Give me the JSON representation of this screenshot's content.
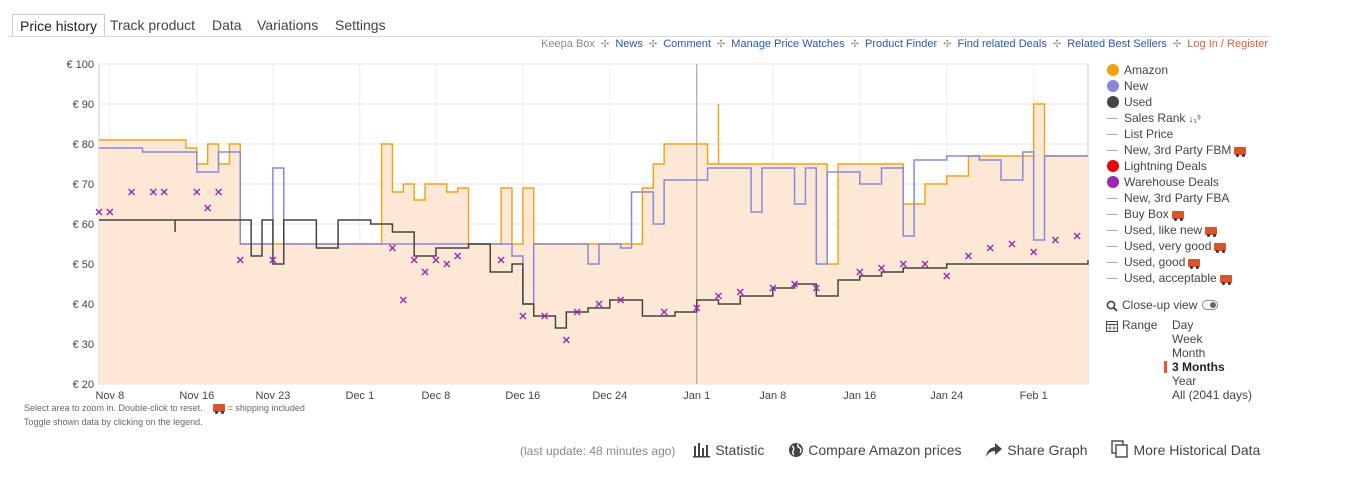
{
  "tabs": [
    "Price history",
    "Track product",
    "Data",
    "Variations",
    "Settings"
  ],
  "links": {
    "keepa_box": "Keepa Box",
    "items": [
      "News",
      "Comment",
      "Manage Price Watches",
      "Product Finder",
      "Find related Deals",
      "Related Best Sellers"
    ],
    "login": "Log In / Register"
  },
  "legend": {
    "items": [
      {
        "label": "Amazon",
        "kind": "dot",
        "color": "#f5a00f"
      },
      {
        "label": "New",
        "kind": "dot",
        "color": "#8888dd"
      },
      {
        "label": "Used",
        "kind": "dot",
        "color": "#444444"
      },
      {
        "label": "Sales Rank",
        "kind": "line",
        "icon": "sort-icon"
      },
      {
        "label": "List Price",
        "kind": "line"
      },
      {
        "label": "New, 3rd Party FBM",
        "kind": "line",
        "icon": "truck-icon"
      },
      {
        "label": "Lightning Deals",
        "kind": "dot",
        "color": "#ee0000"
      },
      {
        "label": "Warehouse Deals",
        "kind": "dot",
        "color": "#9c27b0"
      },
      {
        "label": "New, 3rd Party FBA",
        "kind": "line"
      },
      {
        "label": "Buy Box",
        "kind": "line",
        "icon": "truck-icon"
      },
      {
        "label": "Used, like new",
        "kind": "line",
        "icon": "truck-icon"
      },
      {
        "label": "Used, very good",
        "kind": "line",
        "icon": "truck-icon"
      },
      {
        "label": "Used, good",
        "kind": "line",
        "icon": "truck-icon"
      },
      {
        "label": "Used, acceptable",
        "kind": "line",
        "icon": "truck-icon"
      }
    ]
  },
  "closeup": {
    "label": "Close-up view"
  },
  "range": {
    "label": "Range",
    "options": [
      "Day",
      "Week",
      "Month",
      "3 Months",
      "Year",
      "All (2041 days)"
    ],
    "selected": "3 Months"
  },
  "hints": {
    "zoom": "Select area to zoom in. Double-click to reset.",
    "shipping": "= shipping included",
    "toggle": "Toggle shown data by clicking on the legend."
  },
  "bottom": {
    "last_update": "(last update: 48 minutes ago)",
    "statistic": "Statistic",
    "compare": "Compare Amazon prices",
    "share": "Share Graph",
    "more": "More Historical Data"
  },
  "chart_data": {
    "type": "line",
    "title": "",
    "xlabel": "",
    "ylabel": "",
    "ylim": [
      20,
      100
    ],
    "y_ticks": [
      "€ 100",
      "€ 90",
      "€ 80",
      "€ 70",
      "€ 60",
      "€ 50",
      "€ 40",
      "€ 30",
      "€ 20"
    ],
    "x_range": [
      "2023-11-07",
      "2024-02-06"
    ],
    "x_ticks": [
      {
        "label": "Nov 8",
        "date": "2023-11-08"
      },
      {
        "label": "Nov 16",
        "date": "2023-11-16"
      },
      {
        "label": "Nov 23",
        "date": "2023-11-23"
      },
      {
        "label": "Dec 1",
        "date": "2023-12-01"
      },
      {
        "label": "Dec 8",
        "date": "2023-12-08"
      },
      {
        "label": "Dec 16",
        "date": "2023-12-16"
      },
      {
        "label": "Dec 24",
        "date": "2023-12-24"
      },
      {
        "label": "Jan 1",
        "date": "2024-01-01"
      },
      {
        "label": "Jan 8",
        "date": "2024-01-08"
      },
      {
        "label": "Jan 16",
        "date": "2024-01-16"
      },
      {
        "label": "Jan 24",
        "date": "2024-01-24"
      },
      {
        "label": "Feb 1",
        "date": "2024-02-01"
      }
    ],
    "grid": true,
    "legend_position": "right",
    "series": [
      {
        "name": "Amazon",
        "color": "#f5a00f",
        "style": "step-area",
        "points": [
          [
            "2023-11-07",
            81
          ],
          [
            "2023-11-14",
            81
          ],
          [
            "2023-11-15",
            79
          ],
          [
            "2023-11-16",
            75
          ],
          [
            "2023-11-17",
            80
          ],
          [
            "2023-11-18",
            75
          ],
          [
            "2023-11-19",
            80
          ],
          [
            "2023-11-20",
            55
          ],
          [
            "2023-12-03",
            55
          ],
          [
            "2023-12-03",
            80
          ],
          [
            "2023-12-04",
            68
          ],
          [
            "2023-12-05",
            70
          ],
          [
            "2023-12-06",
            66
          ],
          [
            "2023-12-07",
            70
          ],
          [
            "2023-12-09",
            68
          ],
          [
            "2023-12-10",
            69
          ],
          [
            "2023-12-11",
            55
          ],
          [
            "2023-12-14",
            55
          ],
          [
            "2023-12-14",
            69
          ],
          [
            "2023-12-15",
            55
          ],
          [
            "2023-12-16",
            69
          ],
          [
            "2023-12-17",
            55
          ],
          [
            "2023-12-26",
            55
          ],
          [
            "2023-12-27",
            69
          ],
          [
            "2023-12-28",
            75
          ],
          [
            "2023-12-29",
            80
          ],
          [
            "2024-01-01",
            80
          ],
          [
            "2024-01-02",
            75
          ],
          [
            "2024-01-03",
            90
          ],
          [
            "2024-01-03",
            75
          ],
          [
            "2024-01-12",
            75
          ],
          [
            "2024-01-13",
            50
          ],
          [
            "2024-01-14",
            75
          ],
          [
            "2024-01-20",
            75
          ],
          [
            "2024-01-20",
            65
          ],
          [
            "2024-01-22",
            70
          ],
          [
            "2024-01-24",
            72
          ],
          [
            "2024-01-26",
            77
          ],
          [
            "2024-02-01",
            77
          ],
          [
            "2024-02-01",
            90
          ],
          [
            "2024-02-02",
            77
          ],
          [
            "2024-02-06",
            77
          ]
        ]
      },
      {
        "name": "New",
        "color": "#8888dd",
        "style": "step",
        "points": [
          [
            "2023-11-07",
            79
          ],
          [
            "2023-11-10",
            79
          ],
          [
            "2023-11-11",
            78
          ],
          [
            "2023-11-15",
            78
          ],
          [
            "2023-11-16",
            73
          ],
          [
            "2023-11-18",
            78
          ],
          [
            "2023-11-20",
            55
          ],
          [
            "2023-11-22",
            55
          ],
          [
            "2023-11-23",
            74
          ],
          [
            "2023-11-24",
            55
          ],
          [
            "2023-12-10",
            55
          ],
          [
            "2023-12-14",
            55
          ],
          [
            "2023-12-15",
            52
          ],
          [
            "2023-12-16",
            40
          ],
          [
            "2023-12-17",
            55
          ],
          [
            "2023-12-22",
            55
          ],
          [
            "2023-12-22",
            50
          ],
          [
            "2023-12-23",
            55
          ],
          [
            "2023-12-25",
            54
          ],
          [
            "2023-12-26",
            68
          ],
          [
            "2023-12-28",
            60
          ],
          [
            "2023-12-29",
            71
          ],
          [
            "2024-01-01",
            71
          ],
          [
            "2024-01-02",
            74
          ],
          [
            "2024-01-05",
            74
          ],
          [
            "2024-01-06",
            63
          ],
          [
            "2024-01-07",
            74
          ],
          [
            "2024-01-10",
            65
          ],
          [
            "2024-01-11",
            74
          ],
          [
            "2024-01-12",
            50
          ],
          [
            "2024-01-13",
            73
          ],
          [
            "2024-01-16",
            70
          ],
          [
            "2024-01-18",
            74
          ],
          [
            "2024-01-20",
            57
          ],
          [
            "2024-01-21",
            76
          ],
          [
            "2024-01-24",
            77
          ],
          [
            "2024-01-27",
            76
          ],
          [
            "2024-01-29",
            71
          ],
          [
            "2024-01-31",
            78
          ],
          [
            "2024-02-01",
            56
          ],
          [
            "2024-02-02",
            77
          ],
          [
            "2024-02-06",
            77
          ]
        ]
      },
      {
        "name": "Used",
        "color": "#444444",
        "style": "step",
        "points": [
          [
            "2023-11-07",
            61
          ],
          [
            "2023-11-14",
            61
          ],
          [
            "2023-11-14",
            58
          ],
          [
            "2023-11-14",
            61
          ],
          [
            "2023-11-20",
            61
          ],
          [
            "2023-11-21",
            52
          ],
          [
            "2023-11-22",
            61
          ],
          [
            "2023-11-23",
            50
          ],
          [
            "2023-11-24",
            61
          ],
          [
            "2023-11-26",
            61
          ],
          [
            "2023-11-27",
            54
          ],
          [
            "2023-11-29",
            61
          ],
          [
            "2023-12-02",
            60
          ],
          [
            "2023-12-04",
            58
          ],
          [
            "2023-12-06",
            52
          ],
          [
            "2023-12-08",
            54
          ],
          [
            "2023-12-11",
            55
          ],
          [
            "2023-12-13",
            48
          ],
          [
            "2023-12-15",
            50
          ],
          [
            "2023-12-16",
            40
          ],
          [
            "2023-12-17",
            37
          ],
          [
            "2023-12-19",
            34
          ],
          [
            "2023-12-20",
            38
          ],
          [
            "2023-12-22",
            39
          ],
          [
            "2023-12-24",
            41
          ],
          [
            "2023-12-27",
            37
          ],
          [
            "2023-12-30",
            38
          ],
          [
            "2024-01-01",
            41
          ],
          [
            "2024-01-03",
            40
          ],
          [
            "2024-01-05",
            42
          ],
          [
            "2024-01-08",
            44
          ],
          [
            "2024-01-10",
            45
          ],
          [
            "2024-01-12",
            42
          ],
          [
            "2024-01-14",
            46
          ],
          [
            "2024-01-16",
            47
          ],
          [
            "2024-01-18",
            48
          ],
          [
            "2024-01-20",
            49
          ],
          [
            "2024-01-24",
            50
          ],
          [
            "2024-01-28",
            50
          ],
          [
            "2024-02-01",
            50
          ],
          [
            "2024-02-04",
            50
          ],
          [
            "2024-02-06",
            51
          ]
        ]
      },
      {
        "name": "Warehouse Deals",
        "color": "#9c27b0",
        "style": "markers",
        "points": [
          [
            "2023-11-07",
            63
          ],
          [
            "2023-11-08",
            63
          ],
          [
            "2023-11-10",
            68
          ],
          [
            "2023-11-12",
            68
          ],
          [
            "2023-11-13",
            68
          ],
          [
            "2023-11-16",
            68
          ],
          [
            "2023-11-17",
            64
          ],
          [
            "2023-11-18",
            68
          ],
          [
            "2023-11-20",
            51
          ],
          [
            "2023-11-23",
            51
          ],
          [
            "2023-12-04",
            54
          ],
          [
            "2023-12-05",
            41
          ],
          [
            "2023-12-06",
            51
          ],
          [
            "2023-12-07",
            48
          ],
          [
            "2023-12-08",
            51
          ],
          [
            "2023-12-09",
            50
          ],
          [
            "2023-12-10",
            52
          ],
          [
            "2023-12-14",
            51
          ],
          [
            "2023-12-16",
            37
          ],
          [
            "2023-12-18",
            37
          ],
          [
            "2023-12-20",
            31
          ],
          [
            "2023-12-21",
            38
          ],
          [
            "2023-12-23",
            40
          ],
          [
            "2023-12-25",
            41
          ],
          [
            "2023-12-29",
            38
          ],
          [
            "2024-01-01",
            39
          ],
          [
            "2024-01-03",
            42
          ],
          [
            "2024-01-05",
            43
          ],
          [
            "2024-01-08",
            44
          ],
          [
            "2024-01-10",
            45
          ],
          [
            "2024-01-12",
            44
          ],
          [
            "2024-01-16",
            48
          ],
          [
            "2024-01-18",
            49
          ],
          [
            "2024-01-20",
            50
          ],
          [
            "2024-01-22",
            50
          ],
          [
            "2024-01-24",
            47
          ],
          [
            "2024-01-26",
            52
          ],
          [
            "2024-01-28",
            54
          ],
          [
            "2024-01-30",
            55
          ],
          [
            "2024-02-01",
            53
          ],
          [
            "2024-02-03",
            56
          ],
          [
            "2024-02-05",
            57
          ]
        ]
      }
    ]
  }
}
